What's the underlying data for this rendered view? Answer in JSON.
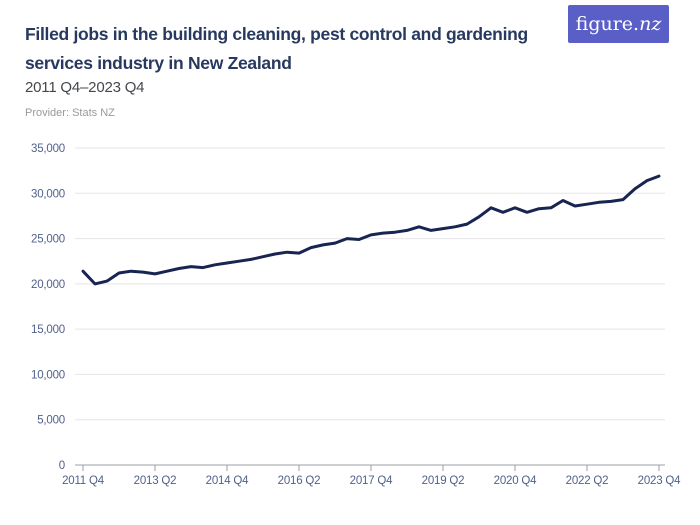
{
  "brand": {
    "logo_text_main": "figure.",
    "logo_text_suffix": "nz",
    "logo_bg": "#5a5fc7"
  },
  "header": {
    "title": "Filled jobs in the building cleaning, pest control and gardening services industry in New Zealand",
    "subtitle": "2011 Q4–2023 Q4",
    "provider": "Provider: Stats NZ"
  },
  "colors": {
    "accent": "#5a5fc7",
    "title_text": "#27395f",
    "subtitle_text": "#44474b",
    "provider_text": "#97999c",
    "axis_label": "#51618c",
    "gridline": "#e4e5e8",
    "axis_line": "#9aa0a6",
    "line": "#182552"
  },
  "chart_data": {
    "type": "line",
    "title": "Filled jobs in the building cleaning, pest control and gardening services industry in New Zealand",
    "subtitle": "2011 Q4–2023 Q4",
    "xlabel": "",
    "ylabel": "",
    "ylim": [
      0,
      35000
    ],
    "ytick_step": 5000,
    "grid": true,
    "legend": "none",
    "line_color": "#182552",
    "xticks": [
      "2011 Q4",
      "2013 Q2",
      "2014 Q4",
      "2016 Q2",
      "2017 Q4",
      "2019 Q2",
      "2020 Q4",
      "2022 Q2",
      "2023 Q4"
    ],
    "x": [
      "2011 Q4",
      "2012 Q1",
      "2012 Q2",
      "2012 Q3",
      "2012 Q4",
      "2013 Q1",
      "2013 Q2",
      "2013 Q3",
      "2013 Q4",
      "2014 Q1",
      "2014 Q2",
      "2014 Q3",
      "2014 Q4",
      "2015 Q1",
      "2015 Q2",
      "2015 Q3",
      "2015 Q4",
      "2016 Q1",
      "2016 Q2",
      "2016 Q3",
      "2016 Q4",
      "2017 Q1",
      "2017 Q2",
      "2017 Q3",
      "2017 Q4",
      "2018 Q1",
      "2018 Q2",
      "2018 Q3",
      "2018 Q4",
      "2019 Q1",
      "2019 Q2",
      "2019 Q3",
      "2019 Q4",
      "2020 Q1",
      "2020 Q2",
      "2020 Q3",
      "2020 Q4",
      "2021 Q1",
      "2021 Q2",
      "2021 Q3",
      "2021 Q4",
      "2022 Q1",
      "2022 Q2",
      "2022 Q3",
      "2022 Q4",
      "2023 Q1",
      "2023 Q2",
      "2023 Q3",
      "2023 Q4"
    ],
    "series": [
      {
        "name": "Filled jobs",
        "values": [
          21400,
          20000,
          20300,
          21200,
          21400,
          21300,
          21100,
          21400,
          21700,
          21900,
          21800,
          22100,
          22300,
          22500,
          22700,
          23000,
          23300,
          23500,
          23400,
          24000,
          24300,
          24500,
          25000,
          24900,
          25400,
          25600,
          25700,
          25900,
          26300,
          25900,
          26100,
          26300,
          26600,
          27400,
          28400,
          27900,
          28400,
          27900,
          28300,
          28400,
          29200,
          28600,
          28800,
          29000,
          29100,
          29300,
          30500,
          31400,
          31900
        ]
      }
    ]
  }
}
